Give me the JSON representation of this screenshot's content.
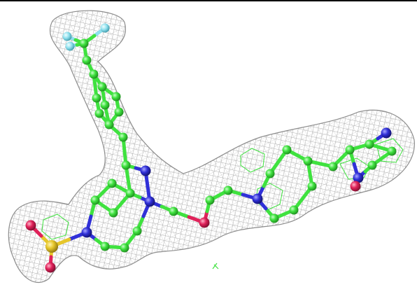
{
  "figure": {
    "kind": "ligand electron density map",
    "colors": {
      "background": "#ffffff",
      "mesh": "#9a9a9a",
      "carbon": "#3fe23f",
      "nitrogen": "#3030d8",
      "oxygen": "#e0225a",
      "fluorine": "#8fe0ee",
      "sulfur": "#e6c62a",
      "frame_line": "#000000"
    }
  }
}
